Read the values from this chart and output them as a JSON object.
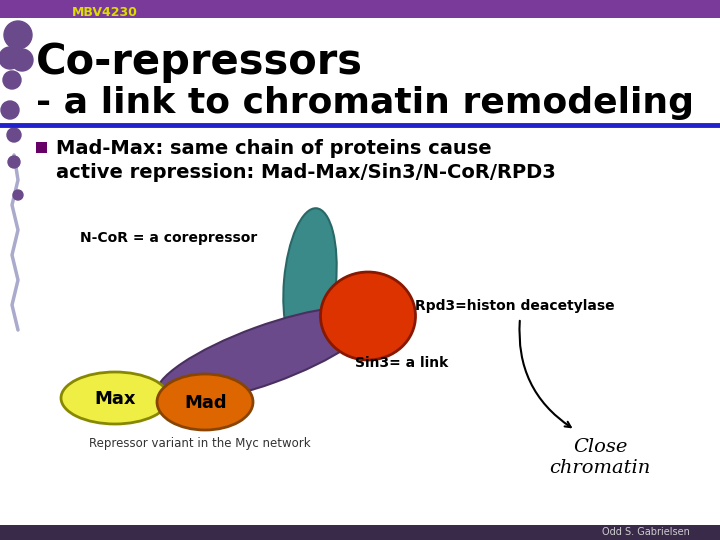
{
  "background_color": "#ffffff",
  "header_bar_color": "#7a3a9a",
  "header_text": "MBV4230",
  "header_text_color": "#dddd00",
  "title_line1": "Co-repressors",
  "title_line2": "- a link to chromatin remodeling",
  "title_color": "#000000",
  "divider_color_blue": "#2222cc",
  "bullet_text_line1": "Mad-Max: same chain of proteins cause",
  "bullet_text_line2": "active repression: Mad-Max/Sin3/N-CoR/RPD3",
  "bullet_color": "#660066",
  "ncor_label": "N-CoR = a corepressor",
  "rpd3_label": "Rpd3=histon deacetylase",
  "sin3_label": "Sin3= a link",
  "max_label": "Max",
  "mad_label": "Mad",
  "repressor_label": "Repressor variant in the Myc network",
  "close_chromatin_label": "Close\nchromatin",
  "footer_text": "Odd S. Gabrielsen",
  "teal_ellipse_color": "#3a8a8a",
  "purple_shape_color": "#6a4a8a",
  "orange_circle_color": "#dd3300",
  "yellow_ellipse_color": "#eeee44",
  "orange_ellipse_color": "#dd6600",
  "left_decoration_color": "#6a4a8a",
  "footer_bar_color": "#3a2a4a"
}
